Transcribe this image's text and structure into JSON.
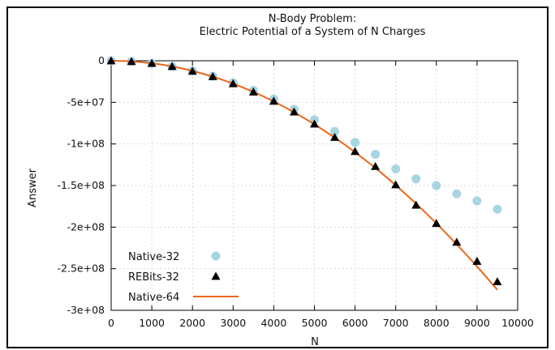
{
  "chart_data": {
    "type": "line",
    "title": [
      "N-Body Problem:",
      "Electric Potential of a System of N Charges"
    ],
    "xlabel": "N",
    "ylabel": "Answer",
    "xlim": [
      0,
      10000
    ],
    "ylim": [
      -300000000,
      0
    ],
    "x_ticks": [
      0,
      1000,
      2000,
      3000,
      4000,
      5000,
      6000,
      7000,
      8000,
      9000,
      10000
    ],
    "x_tick_labels": [
      "0",
      "1000",
      "2000",
      "3000",
      "4000",
      "5000",
      "6000",
      "7000",
      "8000",
      "9000",
      "10000"
    ],
    "y_ticks": [
      0,
      -50000000,
      -100000000,
      -150000000,
      -200000000,
      -250000000,
      -300000000
    ],
    "y_tick_labels": [
      "0",
      "-5e+07",
      "-1e+08",
      "-1.5e+08",
      "-2e+08",
      "-2.5e+08",
      "-3e+08"
    ],
    "grid": true,
    "legend_position": "bottom-left",
    "x": [
      0,
      500,
      1000,
      1500,
      2000,
      2500,
      3000,
      3500,
      4000,
      4500,
      5000,
      5500,
      6000,
      6500,
      7000,
      7500,
      8000,
      8500,
      9000,
      9500
    ],
    "series": [
      {
        "name": "Native-32",
        "marker": "circle",
        "color": "#a8d5e2",
        "values": [
          0,
          -800000,
          -3000000,
          -6800000,
          -12000000,
          -18500000,
          -26500000,
          -35500000,
          -46000000,
          -58500000,
          -71000000,
          -85000000,
          -98000000,
          -112500000,
          -130000000,
          -142000000,
          -150000000,
          -160000000,
          -168500000,
          -178500000
        ]
      },
      {
        "name": "REBits-32",
        "marker": "triangle",
        "color": "#000000",
        "values": [
          0,
          -800000,
          -3000000,
          -6800000,
          -12500000,
          -19000000,
          -27500000,
          -37500000,
          -48500000,
          -61500000,
          -76000000,
          -92000000,
          -109000000,
          -127000000,
          -149000000,
          -173500000,
          -195500000,
          -218000000,
          -241000000,
          -265500000
        ]
      },
      {
        "name": "Native-64",
        "marker": "line",
        "color": "#e8681a",
        "x": [
          0,
          250,
          500,
          750,
          1000,
          1250,
          1500,
          1750,
          2000,
          2250,
          2500,
          2750,
          3000,
          3250,
          3500,
          3750,
          4000,
          4250,
          4500,
          4750,
          5000,
          5250,
          5500,
          5750,
          6000,
          6250,
          6500,
          6750,
          7000,
          7250,
          7500,
          7750,
          8000,
          8250,
          8500,
          8750,
          9000,
          9250,
          9500
        ],
        "values": [
          0,
          -200000,
          -800000,
          -1700000,
          -3000000,
          -4700000,
          -6800000,
          -9300000,
          -12200000,
          -15500000,
          -19100000,
          -23100000,
          -27500000,
          -32300000,
          -37400000,
          -43000000,
          -48900000,
          -55200000,
          -61900000,
          -69000000,
          -76400000,
          -84300000,
          -92500000,
          -101000000,
          -110000000,
          -119300000,
          -129000000,
          -139100000,
          -149600000,
          -160500000,
          -171800000,
          -183400000,
          -195500000,
          -207900000,
          -220700000,
          -233800000,
          -247300000,
          -261200000,
          -275500000
        ]
      }
    ]
  }
}
